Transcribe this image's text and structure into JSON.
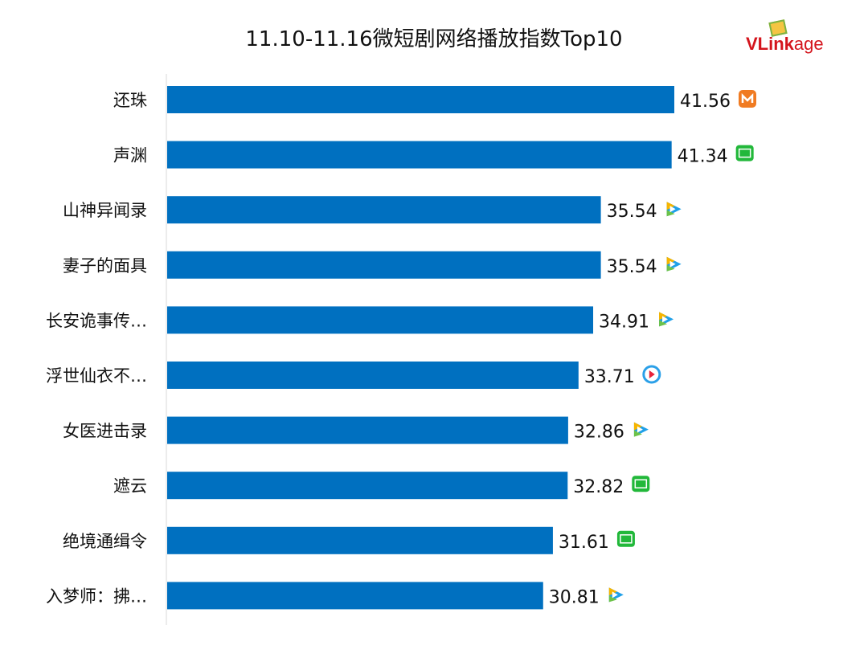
{
  "chart_data": {
    "type": "bar",
    "orientation": "horizontal",
    "title": "11.10-11.16微短剧网络播放指数Top10",
    "categories": [
      "还珠",
      "声渊",
      "山神异闻录",
      "妻子的面具",
      "长安诡事传…",
      "浮世仙衣不…",
      "女医进击录",
      "遮云",
      "绝境通缉令",
      "入梦师：拂…"
    ],
    "values": [
      41.56,
      41.34,
      35.54,
      35.54,
      34.91,
      33.71,
      32.86,
      32.82,
      31.61,
      30.81
    ],
    "platforms": [
      "mango-tv",
      "iqiyi",
      "tencent-video",
      "tencent-video",
      "tencent-video",
      "youku",
      "tencent-video",
      "iqiyi",
      "iqiyi",
      "tencent-video"
    ],
    "xlim": [
      0,
      45
    ],
    "grid": false,
    "legend": "none",
    "bar_color": "#0070c0"
  },
  "logo": {
    "text_bold": "VLink",
    "text_light": "age"
  }
}
